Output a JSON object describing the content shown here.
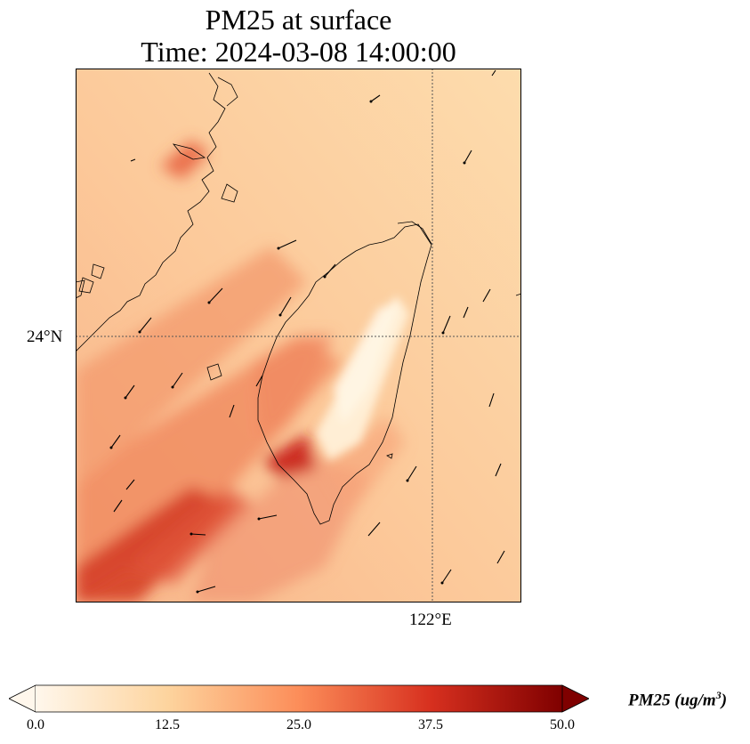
{
  "title": {
    "line1": "PM25 at surface",
    "line2": "Time: 2024-03-08 14:00:00"
  },
  "map": {
    "lat_label": "24°N",
    "lon_label": "122°E",
    "gridline_style": "dotted"
  },
  "colorbar": {
    "label_text": "PM25 (ug/m",
    "label_sup": "3",
    "label_close": ")",
    "ticks": [
      "0.0",
      "12.5",
      "25.0",
      "37.5",
      "50.0"
    ],
    "colormap": [
      "#fff7ec",
      "#fdd49e",
      "#fc8d59",
      "#d7301f",
      "#7f0000"
    ],
    "extend": "both"
  }
}
